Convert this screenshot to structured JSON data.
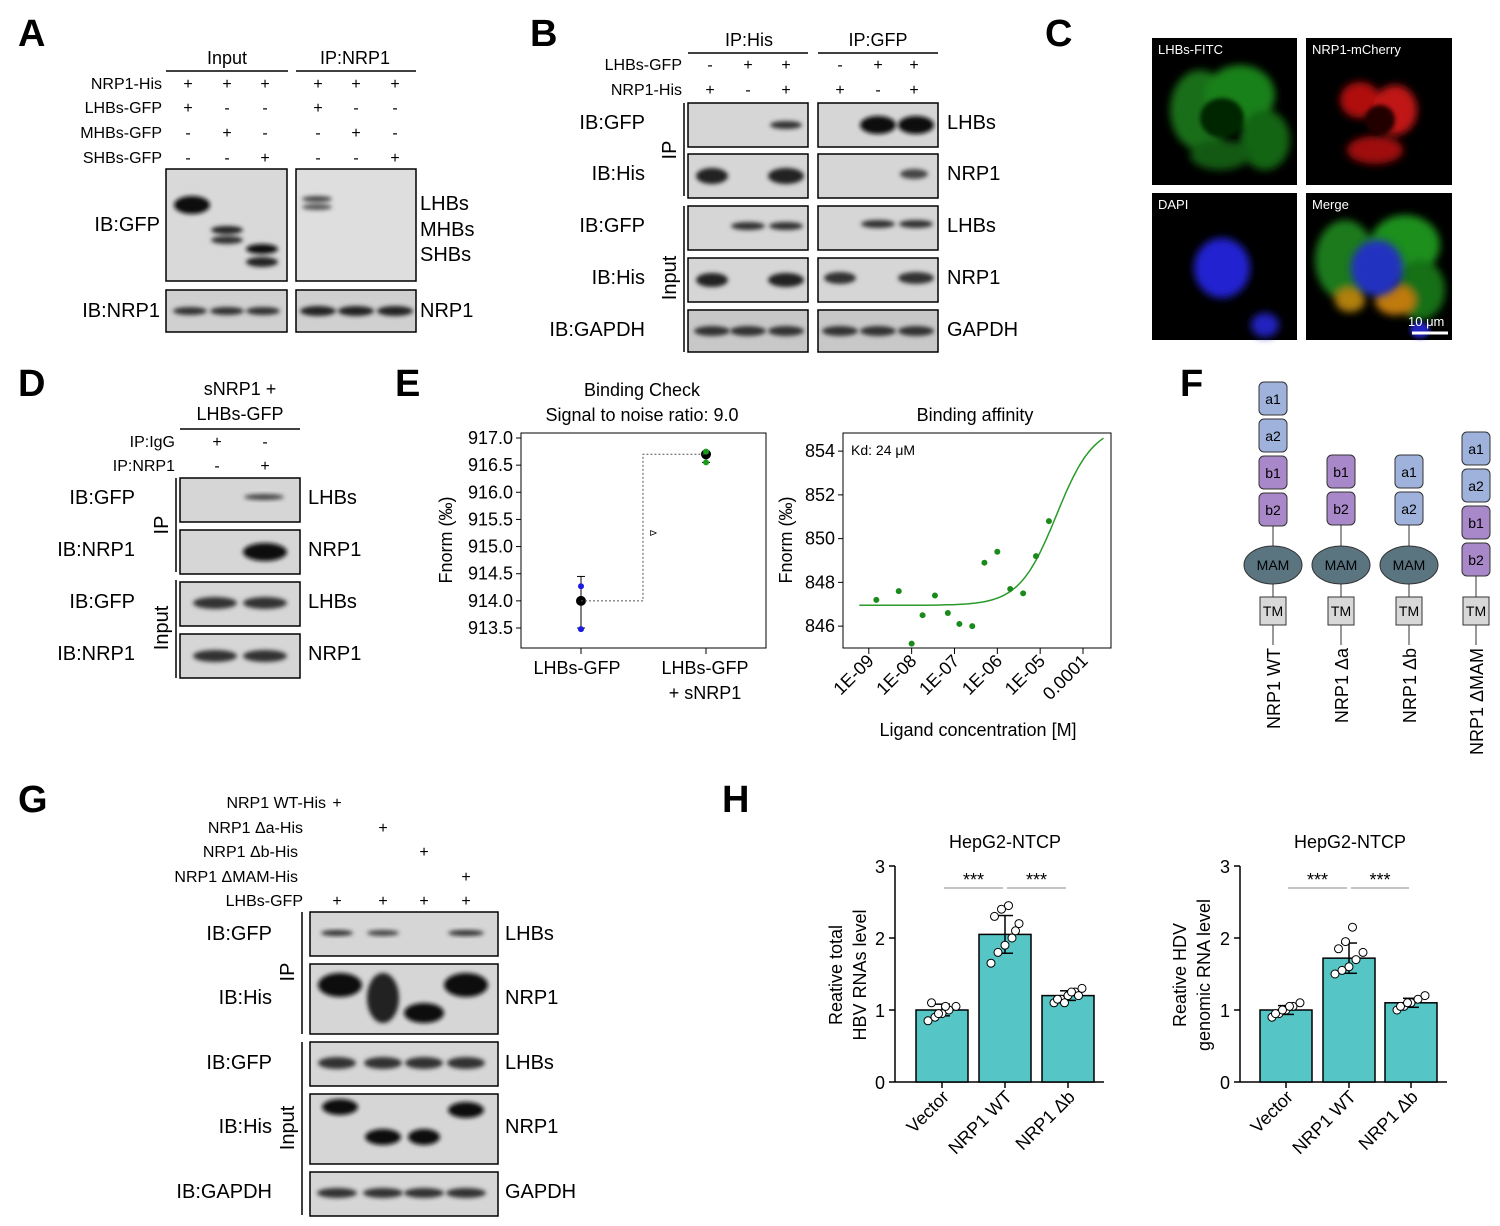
{
  "panels": {
    "A": "A",
    "B": "B",
    "C": "C",
    "D": "D",
    "E": "E",
    "F": "F",
    "G": "G",
    "H": "H"
  },
  "A": {
    "hdr_input": "Input",
    "hdr_ip": "IP:NRP1",
    "rows": [
      "NRP1-His",
      "LHBs-GFP",
      "MHBs-GFP",
      "SHBs-GFP"
    ],
    "signs": [
      [
        "+",
        "+",
        "+",
        "+",
        "+",
        "+"
      ],
      [
        "+",
        "-",
        "-",
        "+",
        "-",
        "-"
      ],
      [
        "-",
        "+",
        "-",
        "-",
        "+",
        "-"
      ],
      [
        "-",
        "-",
        "+",
        "-",
        "-",
        "+"
      ]
    ],
    "ib1": "IB:GFP",
    "ib2": "IB:NRP1",
    "band_labels": [
      "LHBs",
      "MHBs",
      "SHBs"
    ],
    "nrp1": "NRP1"
  },
  "B": {
    "hdr1": "IP:His",
    "hdr2": "IP:GFP",
    "rows": [
      "LHBs-GFP",
      "NRP1-His"
    ],
    "signs": [
      [
        "-",
        "+",
        "+",
        "-",
        "+",
        "+"
      ],
      [
        "+",
        "-",
        "+",
        "+",
        "-",
        "+"
      ]
    ],
    "ib": [
      "IB:GFP",
      "IB:His",
      "IB:GFP",
      "IB:His",
      "IB:GAPDH"
    ],
    "ip": "IP",
    "input": "Input",
    "right": [
      "LHBs",
      "NRP1",
      "LHBs",
      "NRP1",
      "GAPDH"
    ]
  },
  "C": {
    "labels": [
      "LHBs-FITC",
      "NRP1-mCherry",
      "DAPI",
      "Merge"
    ],
    "scale": "10 μm"
  },
  "D": {
    "hdr1": "sNRP1 +",
    "hdr2": "LHBs-GFP",
    "rows": [
      "IP:IgG",
      "IP:NRP1"
    ],
    "signs": [
      [
        "+",
        "-"
      ],
      [
        "-",
        "+"
      ]
    ],
    "ib": [
      "IB:GFP",
      "IB:NRP1",
      "IB:GFP",
      "IB:NRP1"
    ],
    "ip": "IP",
    "input": "Input",
    "right": [
      "LHBs",
      "NRP1",
      "LHBs",
      "NRP1"
    ]
  },
  "E": {
    "left_title1": "Binding Check",
    "left_title2": "Signal to noise ratio: 9.0",
    "left_ylabel": "Fnorm (‰)",
    "left_yticks": [
      "917.0",
      "916.5",
      "916.0",
      "915.5",
      "915.0",
      "914.5",
      "914.0",
      "913.5"
    ],
    "left_xcat1": "LHBs-GFP",
    "left_xcat2a": "LHBs-GFP",
    "left_xcat2b": "+ sNRP1",
    "right_title": "Binding affinity",
    "kd": "Kd: 24 μM",
    "right_ylabel": "Fnorm (‰)",
    "right_xlabel": "Ligand concentration [M]",
    "right_yticks": [
      "854",
      "852",
      "850",
      "848",
      "846"
    ],
    "right_xticks": [
      "1E-09",
      "1E-08",
      "1E-07",
      "1E-06",
      "1E-05",
      "0.0001"
    ]
  },
  "F": {
    "constructs": [
      "NRP1 WT",
      "NRP1 Δa",
      "NRP1 Δb",
      "NRP1 ΔMAM"
    ],
    "domains": [
      "a1",
      "a2",
      "b1",
      "b2",
      "MAM",
      "TM"
    ]
  },
  "G": {
    "rows": [
      "NRP1 WT-His",
      "NRP1 Δa-His",
      "NRP1 Δb-His",
      "NRP1 ΔMAM-His",
      "LHBs-GFP"
    ],
    "plus": "+",
    "ib": [
      "IB:GFP",
      "IB:His",
      "IB:GFP",
      "IB:His",
      "IB:GAPDH"
    ],
    "ip": "IP",
    "input": "Input",
    "right": [
      "LHBs",
      "NRP1",
      "LHBs",
      "NRP1",
      "GAPDH"
    ]
  },
  "H": {
    "title": "HepG2-NTCP",
    "ylabel1a": "Reative total",
    "ylabel1b": "HBV RNAs level",
    "ylabel2a": "Reative HDV",
    "ylabel2b": "genomic RNA level",
    "categories": [
      "Vector",
      "NRP1 WT",
      "NRP1 Δb"
    ],
    "sig": "***",
    "yticks": [
      "3",
      "2",
      "1",
      "0"
    ]
  },
  "chart_data": [
    {
      "type": "scatter",
      "title": "Binding Check",
      "subtitle": "Signal to noise ratio: 9.0",
      "ylabel": "Fnorm (‰)",
      "ylim": [
        913.3,
        917.1
      ],
      "categories": [
        "LHBs-GFP",
        "LHBs-GFP + sNRP1"
      ],
      "values": [
        914.0,
        916.7
      ],
      "error": [
        [
          913.5,
          914.45
        ],
        [
          916.55,
          916.75
        ]
      ]
    },
    {
      "type": "scatter",
      "title": "Binding affinity",
      "annotation": "Kd: 24 μM",
      "xlabel": "Ligand concentration [M]",
      "ylabel": "Fnorm (‰)",
      "xscale": "log",
      "xlim": [
        1e-09,
        0.0003
      ],
      "ylim": [
        845,
        854
      ],
      "x": [
        1.5e-09,
        5e-09,
        1e-08,
        1.8e-08,
        3.5e-08,
        7e-08,
        1.3e-07,
        2.6e-07,
        5e-07,
        1e-06,
        2e-06,
        4e-06,
        8e-06,
        1.6e-05
      ],
      "y": [
        847.2,
        847.6,
        845.2,
        846.5,
        847.4,
        846.6,
        846.1,
        846.0,
        848.9,
        849.4,
        847.7,
        847.5,
        849.2,
        850.8
      ]
    },
    {
      "type": "bar",
      "title": "HepG2-NTCP",
      "ylabel": "Reative total HBV RNAs level",
      "ylim": [
        0,
        3
      ],
      "categories": [
        "Vector",
        "NRP1 WT",
        "NRP1 Δb"
      ],
      "values": [
        1.0,
        2.05,
        1.2
      ],
      "points": [
        [
          0.85,
          0.9,
          0.95,
          1.0,
          1.05,
          1.1,
          0.95,
          1.05
        ],
        [
          1.65,
          1.8,
          1.9,
          2.0,
          2.2,
          2.3,
          2.4,
          2.45,
          2.1
        ],
        [
          1.1,
          1.15,
          1.2,
          1.25,
          1.3,
          1.15,
          1.1,
          1.25,
          1.2
        ]
      ]
    },
    {
      "type": "bar",
      "title": "HepG2-NTCP",
      "ylabel": "Reative HDV genomic RNA level",
      "ylim": [
        0,
        3
      ],
      "categories": [
        "Vector",
        "NRP1 WT",
        "NRP1 Δb"
      ],
      "values": [
        1.0,
        1.72,
        1.1
      ],
      "points": [
        [
          0.9,
          0.95,
          1.0,
          1.05,
          1.1,
          0.95,
          1.0,
          1.05
        ],
        [
          1.5,
          1.55,
          1.6,
          1.7,
          1.8,
          1.85,
          1.95,
          2.15
        ],
        [
          1.0,
          1.05,
          1.1,
          1.15,
          1.2,
          1.05,
          1.1
        ]
      ]
    }
  ]
}
